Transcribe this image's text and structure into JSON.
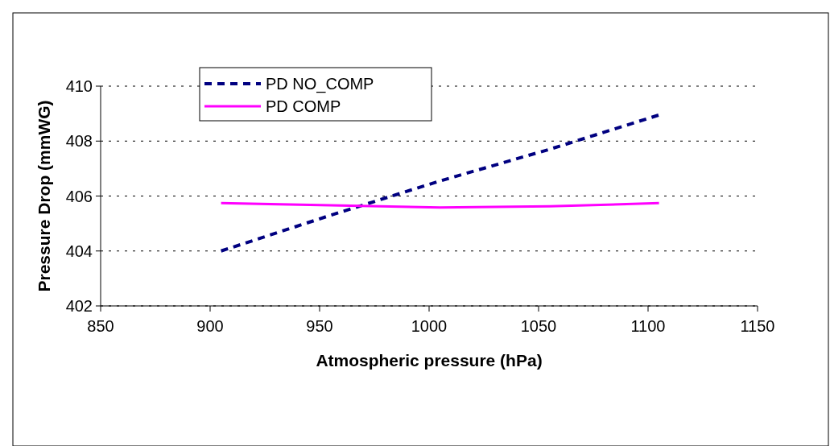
{
  "chart_data": {
    "type": "line",
    "xlabel": "Atmospheric pressure (hPa)",
    "ylabel": "Pressure Drop (mmWG)",
    "x": [
      905,
      955,
      1005,
      1055,
      1105
    ],
    "series": [
      {
        "name": "PD NO_COMP",
        "color": "#000080",
        "line_style": "dashed",
        "values": [
          404.0,
          405.3,
          406.55,
          407.7,
          408.95
        ]
      },
      {
        "name": "PD COMP",
        "color": "#ff00ff",
        "line_style": "solid",
        "values": [
          405.74,
          405.66,
          405.58,
          405.63,
          405.74
        ]
      }
    ],
    "xlim": [
      850,
      1150
    ],
    "xticks": [
      850,
      900,
      950,
      1000,
      1050,
      1100,
      1150
    ],
    "ylim": [
      402,
      410
    ],
    "yticks": [
      402,
      404,
      406,
      408,
      410
    ],
    "grid": "y",
    "legend": "top left"
  }
}
